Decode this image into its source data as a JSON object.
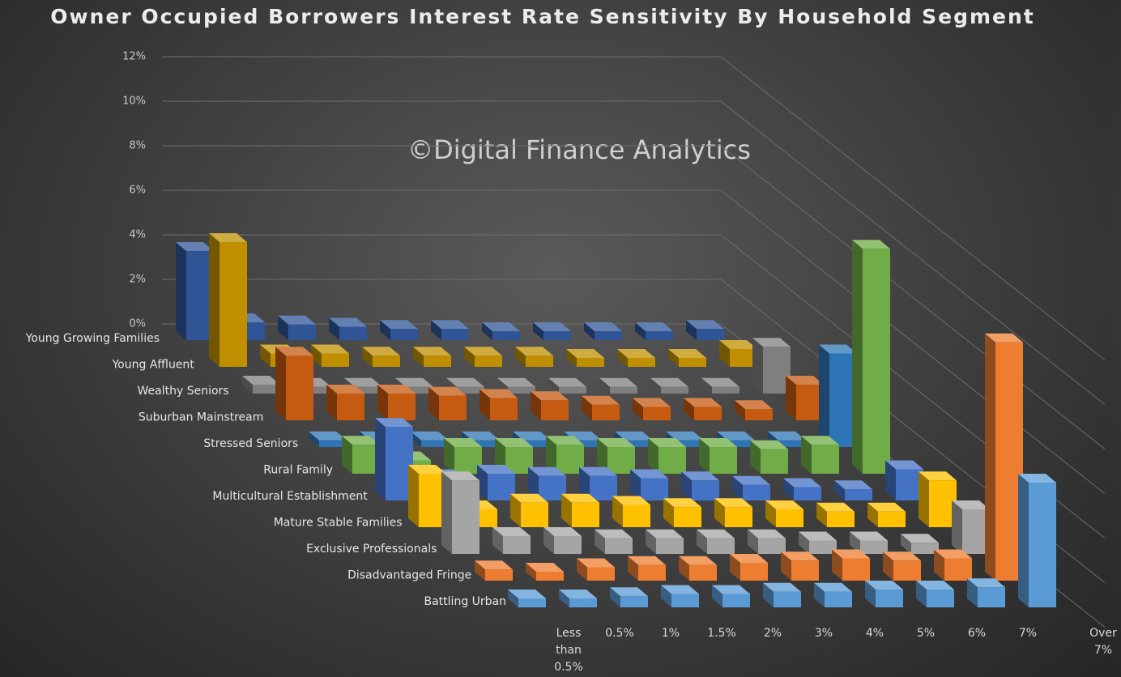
{
  "chart_data": {
    "type": "bar3d",
    "title": "Owner Occupied Borrowers Interest Rate Sensitivity By Household Segment",
    "watermark": "©Digital Finance Analytics",
    "categories": [
      "Less than 0.5%",
      "0.5%",
      "1%",
      "1.5%",
      "2%",
      "3%",
      "4%",
      "5%",
      "6%",
      "7%",
      "Over 7%"
    ],
    "ylim": [
      0,
      12
    ],
    "yticks": [
      {
        "value": 0,
        "label": "0%"
      },
      {
        "value": 2,
        "label": "2%"
      },
      {
        "value": 4,
        "label": "4%"
      },
      {
        "value": 6,
        "label": "6%"
      },
      {
        "value": 8,
        "label": "8%"
      },
      {
        "value": 10,
        "label": "10%"
      },
      {
        "value": 12,
        "label": "12%"
      }
    ],
    "grid": true,
    "series": [
      {
        "name": "Young Growing Families",
        "color": "#2f5597",
        "values": [
          4.0,
          0.8,
          0.7,
          0.6,
          0.5,
          0.5,
          0.4,
          0.4,
          0.4,
          0.4,
          0.5
        ]
      },
      {
        "name": "Young Affluent",
        "color": "#bf8f00",
        "values": [
          5.6,
          0.6,
          0.6,
          0.5,
          0.5,
          0.5,
          0.5,
          0.4,
          0.4,
          0.4,
          0.8
        ]
      },
      {
        "name": "Wealthy Seniors",
        "color": "#7f7f7f",
        "values": [
          0.4,
          0.3,
          0.3,
          0.3,
          0.3,
          0.3,
          0.3,
          0.3,
          0.3,
          0.3,
          2.1
        ]
      },
      {
        "name": "Suburban Mainstream",
        "color": "#c55a11",
        "values": [
          2.9,
          1.2,
          1.2,
          1.1,
          1.0,
          0.9,
          0.7,
          0.6,
          0.6,
          0.5,
          1.6
        ]
      },
      {
        "name": "Stressed Seniors",
        "color": "#2e75b6",
        "values": [
          0.3,
          0.3,
          0.3,
          0.3,
          0.3,
          0.3,
          0.3,
          0.3,
          0.3,
          0.3,
          4.2
        ]
      },
      {
        "name": "Rural Family",
        "color": "#70ad47",
        "values": [
          1.3,
          0.6,
          1.2,
          1.2,
          1.3,
          1.2,
          1.2,
          1.2,
          1.1,
          1.3,
          10.1
        ]
      },
      {
        "name": "Multicultural Establishment",
        "color": "#4472c4",
        "values": [
          3.3,
          1.0,
          1.2,
          1.1,
          1.1,
          1.0,
          0.9,
          0.7,
          0.6,
          0.5,
          1.4
        ]
      },
      {
        "name": "Mature Stable Families",
        "color": "#ffc000",
        "values": [
          2.4,
          0.8,
          1.1,
          1.1,
          1.0,
          0.9,
          0.9,
          0.8,
          0.7,
          0.7,
          2.1
        ]
      },
      {
        "name": "Exclusive Professionals",
        "color": "#a5a5a5",
        "values": [
          3.3,
          0.8,
          0.8,
          0.7,
          0.7,
          0.7,
          0.7,
          0.6,
          0.6,
          0.5,
          2.0
        ]
      },
      {
        "name": "Disadvantaged Fringe",
        "color": "#ed7d31",
        "values": [
          0.5,
          0.4,
          0.6,
          0.7,
          0.7,
          0.8,
          0.9,
          1.0,
          0.9,
          1.0,
          10.7
        ]
      },
      {
        "name": "Battling Urban",
        "color": "#5b9bd5",
        "values": [
          0.4,
          0.4,
          0.5,
          0.6,
          0.6,
          0.7,
          0.7,
          0.8,
          0.8,
          0.9,
          5.6
        ]
      }
    ]
  }
}
